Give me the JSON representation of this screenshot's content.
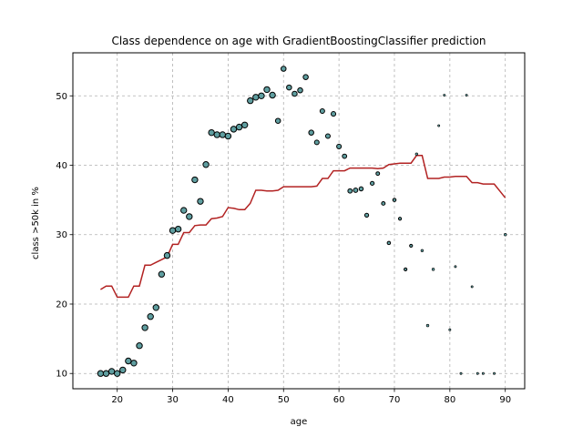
{
  "chart_data": {
    "type": "scatter",
    "title": "Class dependence on age with GradientBoostingClassifier prediction",
    "xlabel": "age",
    "ylabel": "class >50k in %",
    "xlim": [
      12,
      93.5
    ],
    "ylim": [
      7.8,
      56.2
    ],
    "xticks": [
      20,
      30,
      40,
      50,
      60,
      70,
      80,
      90
    ],
    "yticks": [
      10,
      20,
      30,
      40,
      50
    ],
    "grid": true,
    "colors": {
      "points": "#5f9ea0",
      "point_edge": "#000000",
      "line": "#b22222",
      "grid": "#b0b0b0"
    },
    "series": [
      {
        "kind": "scatter",
        "points": [
          {
            "x": 17,
            "y": 10.0,
            "s": 16
          },
          {
            "x": 18,
            "y": 10.0,
            "s": 16
          },
          {
            "x": 19,
            "y": 10.3,
            "s": 16
          },
          {
            "x": 20,
            "y": 10.0,
            "s": 16
          },
          {
            "x": 21,
            "y": 10.5,
            "s": 16
          },
          {
            "x": 22,
            "y": 11.8,
            "s": 16
          },
          {
            "x": 23,
            "y": 11.5,
            "s": 16
          },
          {
            "x": 24,
            "y": 14.0,
            "s": 16
          },
          {
            "x": 25,
            "y": 16.6,
            "s": 16
          },
          {
            "x": 26,
            "y": 18.2,
            "s": 16
          },
          {
            "x": 27,
            "y": 19.5,
            "s": 16
          },
          {
            "x": 28,
            "y": 24.3,
            "s": 16
          },
          {
            "x": 29,
            "y": 27.0,
            "s": 16
          },
          {
            "x": 30,
            "y": 30.6,
            "s": 16
          },
          {
            "x": 31,
            "y": 30.8,
            "s": 16
          },
          {
            "x": 32,
            "y": 33.5,
            "s": 16
          },
          {
            "x": 33,
            "y": 32.6,
            "s": 16
          },
          {
            "x": 34,
            "y": 37.9,
            "s": 16
          },
          {
            "x": 35,
            "y": 34.8,
            "s": 16
          },
          {
            "x": 36,
            "y": 40.1,
            "s": 16
          },
          {
            "x": 37,
            "y": 44.7,
            "s": 16
          },
          {
            "x": 38,
            "y": 44.4,
            "s": 16
          },
          {
            "x": 39,
            "y": 44.4,
            "s": 16
          },
          {
            "x": 40,
            "y": 44.2,
            "s": 16
          },
          {
            "x": 41,
            "y": 45.2,
            "s": 16
          },
          {
            "x": 42,
            "y": 45.5,
            "s": 16
          },
          {
            "x": 43,
            "y": 45.8,
            "s": 16
          },
          {
            "x": 44,
            "y": 49.3,
            "s": 16
          },
          {
            "x": 45,
            "y": 49.8,
            "s": 16
          },
          {
            "x": 46,
            "y": 50.0,
            "s": 16
          },
          {
            "x": 47,
            "y": 50.9,
            "s": 16
          },
          {
            "x": 48,
            "y": 50.1,
            "s": 16
          },
          {
            "x": 49,
            "y": 46.4,
            "s": 12
          },
          {
            "x": 50,
            "y": 53.9,
            "s": 12
          },
          {
            "x": 51,
            "y": 51.2,
            "s": 12
          },
          {
            "x": 52,
            "y": 50.3,
            "s": 12
          },
          {
            "x": 53,
            "y": 50.8,
            "s": 12
          },
          {
            "x": 54,
            "y": 52.7,
            "s": 12
          },
          {
            "x": 55,
            "y": 44.7,
            "s": 12
          },
          {
            "x": 56,
            "y": 43.3,
            "s": 10
          },
          {
            "x": 57,
            "y": 47.8,
            "s": 10
          },
          {
            "x": 58,
            "y": 44.2,
            "s": 10
          },
          {
            "x": 59,
            "y": 47.4,
            "s": 10
          },
          {
            "x": 60,
            "y": 42.7,
            "s": 10
          },
          {
            "x": 61,
            "y": 41.3,
            "s": 9
          },
          {
            "x": 62,
            "y": 36.3,
            "s": 9
          },
          {
            "x": 63,
            "y": 36.4,
            "s": 9
          },
          {
            "x": 64,
            "y": 36.6,
            "s": 8
          },
          {
            "x": 65,
            "y": 32.8,
            "s": 7
          },
          {
            "x": 66,
            "y": 37.4,
            "s": 7
          },
          {
            "x": 67,
            "y": 38.8,
            "s": 6
          },
          {
            "x": 68,
            "y": 34.5,
            "s": 6
          },
          {
            "x": 69,
            "y": 28.8,
            "s": 5
          },
          {
            "x": 70,
            "y": 35.0,
            "s": 5
          },
          {
            "x": 71,
            "y": 32.3,
            "s": 4
          },
          {
            "x": 72,
            "y": 25.0,
            "s": 4
          },
          {
            "x": 73,
            "y": 28.4,
            "s": 4
          },
          {
            "x": 74,
            "y": 41.6,
            "s": 3
          },
          {
            "x": 75,
            "y": 27.7,
            "s": 3
          },
          {
            "x": 76,
            "y": 16.9,
            "s": 3
          },
          {
            "x": 77,
            "y": 25.0,
            "s": 3
          },
          {
            "x": 78,
            "y": 45.7,
            "s": 2
          },
          {
            "x": 79,
            "y": 50.1,
            "s": 2
          },
          {
            "x": 80,
            "y": 16.3,
            "s": 2
          },
          {
            "x": 81,
            "y": 25.4,
            "s": 2
          },
          {
            "x": 82,
            "y": 10.0,
            "s": 2
          },
          {
            "x": 83,
            "y": 50.1,
            "s": 2
          },
          {
            "x": 84,
            "y": 22.5,
            "s": 2
          },
          {
            "x": 85,
            "y": 10.0,
            "s": 2
          },
          {
            "x": 86,
            "y": 10.0,
            "s": 2
          },
          {
            "x": 88,
            "y": 10.0,
            "s": 2
          },
          {
            "x": 90,
            "y": 30.0,
            "s": 3
          }
        ]
      },
      {
        "kind": "line",
        "points": [
          [
            17,
            22.1
          ],
          [
            18,
            22.6
          ],
          [
            19,
            22.6
          ],
          [
            20,
            21.0
          ],
          [
            21,
            21.0
          ],
          [
            22,
            21.0
          ],
          [
            23,
            22.6
          ],
          [
            24,
            22.6
          ],
          [
            25,
            25.6
          ],
          [
            26,
            25.6
          ],
          [
            27,
            26.0
          ],
          [
            28,
            26.4
          ],
          [
            29,
            26.8
          ],
          [
            30,
            28.6
          ],
          [
            31,
            28.6
          ],
          [
            32,
            30.3
          ],
          [
            33,
            30.3
          ],
          [
            34,
            31.3
          ],
          [
            35,
            31.4
          ],
          [
            36,
            31.4
          ],
          [
            37,
            32.3
          ],
          [
            38,
            32.4
          ],
          [
            39,
            32.6
          ],
          [
            40,
            33.9
          ],
          [
            41,
            33.8
          ],
          [
            42,
            33.6
          ],
          [
            43,
            33.6
          ],
          [
            44,
            34.5
          ],
          [
            45,
            36.4
          ],
          [
            46,
            36.4
          ],
          [
            47,
            36.3
          ],
          [
            48,
            36.3
          ],
          [
            49,
            36.4
          ],
          [
            50,
            36.9
          ],
          [
            51,
            36.9
          ],
          [
            52,
            36.9
          ],
          [
            53,
            36.9
          ],
          [
            54,
            36.9
          ],
          [
            55,
            36.9
          ],
          [
            56,
            37.0
          ],
          [
            57,
            38.1
          ],
          [
            58,
            38.1
          ],
          [
            59,
            39.2
          ],
          [
            60,
            39.2
          ],
          [
            61,
            39.2
          ],
          [
            62,
            39.6
          ],
          [
            63,
            39.6
          ],
          [
            64,
            39.6
          ],
          [
            65,
            39.6
          ],
          [
            66,
            39.6
          ],
          [
            67,
            39.5
          ],
          [
            68,
            39.6
          ],
          [
            69,
            40.1
          ],
          [
            70,
            40.2
          ],
          [
            71,
            40.3
          ],
          [
            72,
            40.3
          ],
          [
            73,
            40.3
          ],
          [
            74,
            41.4
          ],
          [
            75,
            41.4
          ],
          [
            76,
            38.1
          ],
          [
            77,
            38.1
          ],
          [
            78,
            38.1
          ],
          [
            79,
            38.3
          ],
          [
            80,
            38.3
          ],
          [
            81,
            38.4
          ],
          [
            82,
            38.4
          ],
          [
            83,
            38.4
          ],
          [
            84,
            37.5
          ],
          [
            85,
            37.5
          ],
          [
            86,
            37.3
          ],
          [
            87,
            37.3
          ],
          [
            88,
            37.3
          ],
          [
            89,
            36.3
          ],
          [
            90,
            35.3
          ]
        ]
      }
    ]
  }
}
